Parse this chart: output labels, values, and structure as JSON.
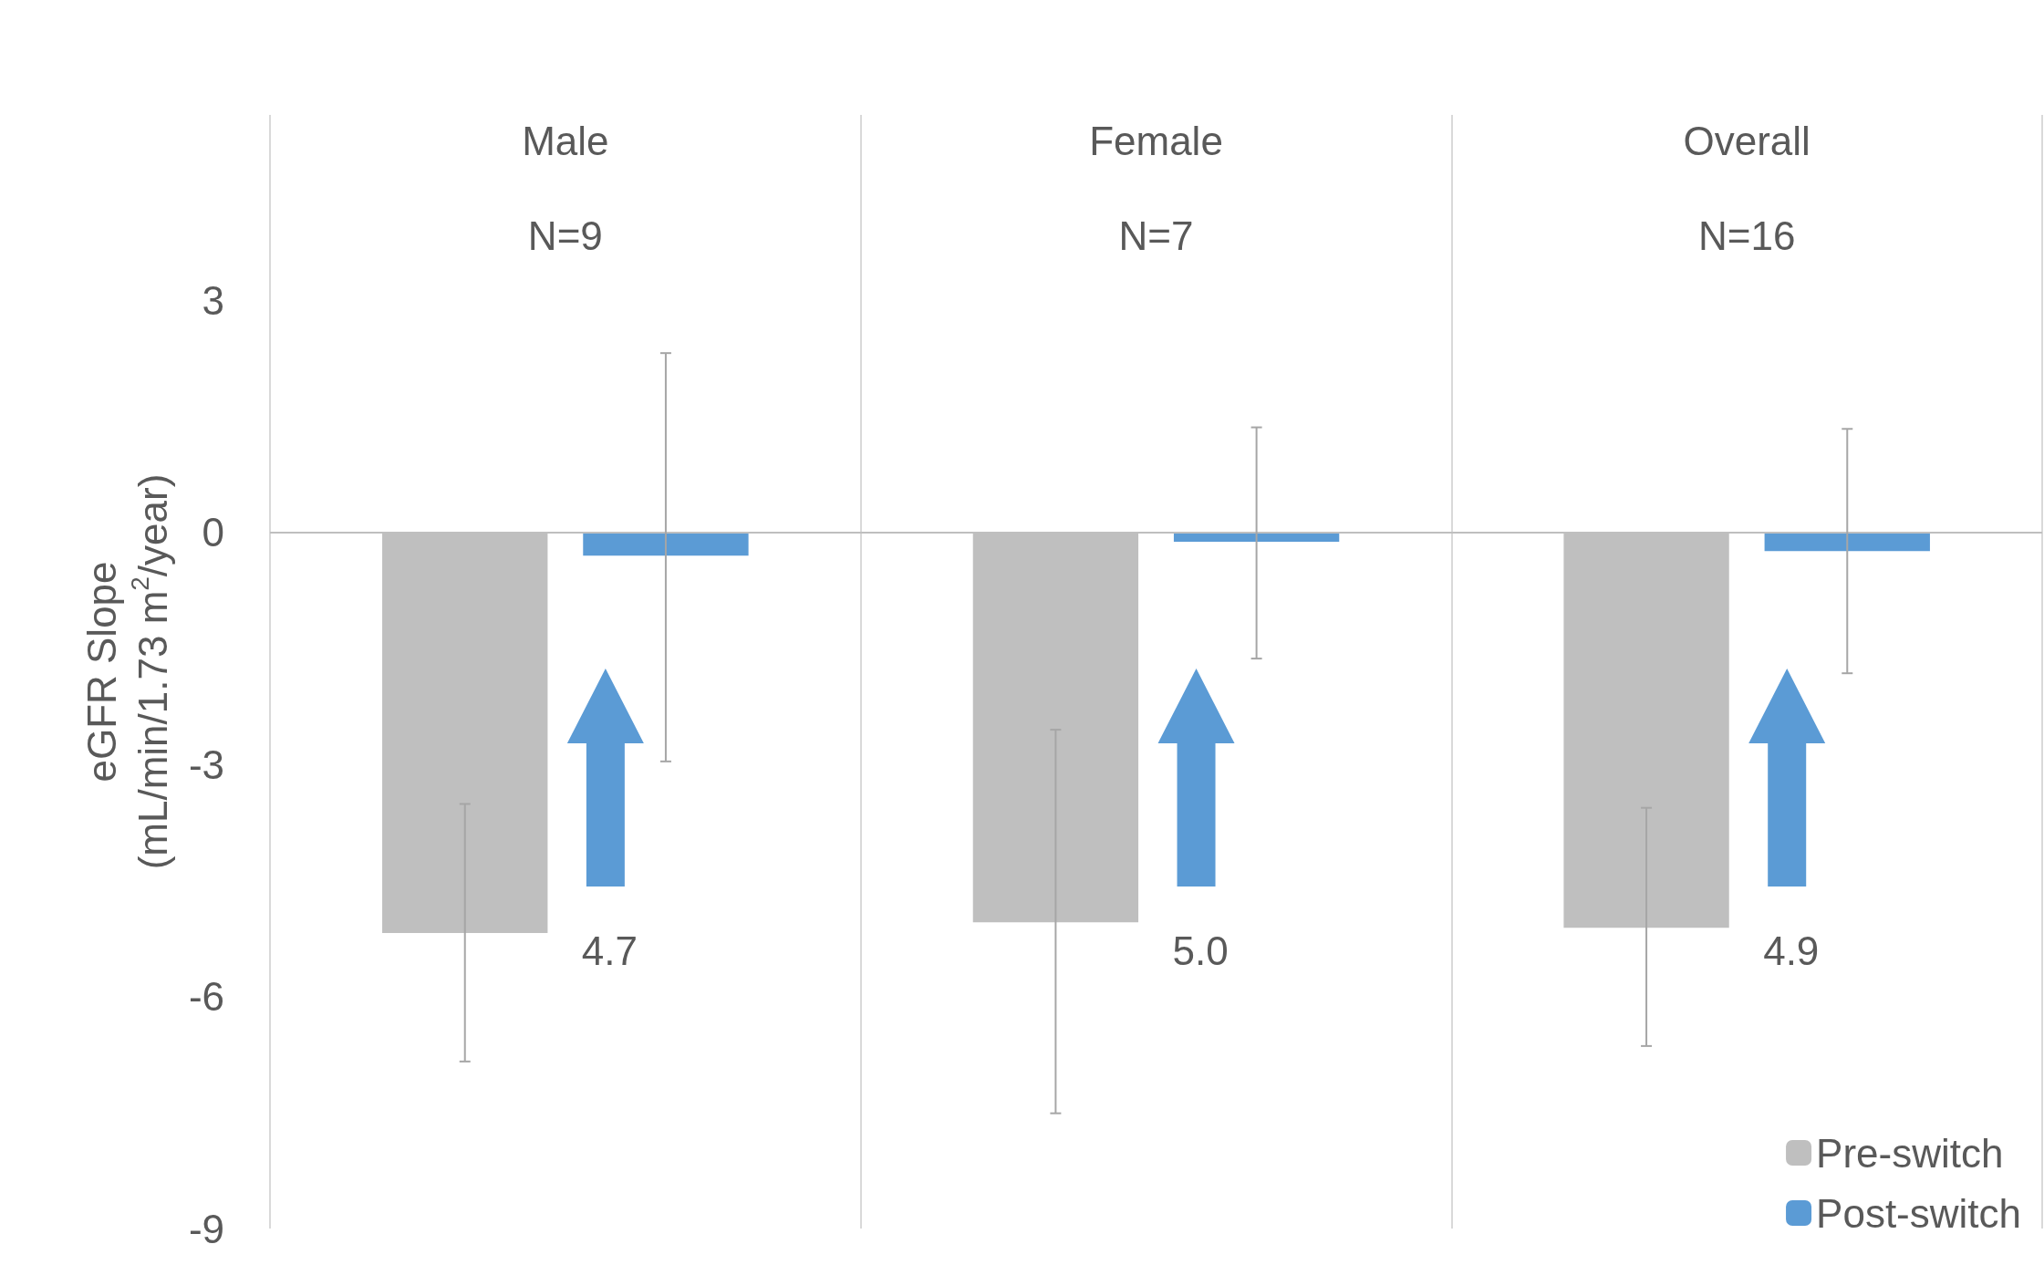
{
  "chart_data": {
    "type": "bar",
    "ylabel": "eGFR Slope\n(mL/min/1.73 m$^{2}$/year)",
    "categories": [
      "Male",
      "Female",
      "Overall"
    ],
    "series": [
      {
        "name": "Pre-switch",
        "color": "#bfbfbf",
        "values": [
          -5.18,
          -5.04,
          -5.11
        ],
        "errors": [
          [
            -6.84,
            -3.51
          ],
          [
            -7.51,
            -2.55
          ],
          [
            -6.64,
            -3.56
          ]
        ]
      },
      {
        "name": "Post-switch",
        "color": "#5b9bd5",
        "values": [
          -0.3,
          -0.12,
          -0.24
        ],
        "errors": [
          [
            -2.96,
            2.32
          ],
          [
            -1.63,
            1.36
          ],
          [
            -1.82,
            1.34
          ]
        ]
      }
    ],
    "ylim": [
      -9,
      5.4
    ],
    "yticks": [
      -9,
      -6,
      -3,
      0,
      3
    ],
    "grid": "x",
    "legend": "bottom right",
    "ref_lines": [
      {
        "axis": "y",
        "value": 0
      }
    ],
    "annotations": [
      "N=9",
      "N=7",
      "N=16",
      "4.7",
      "5.0",
      "4.9"
    ]
  }
}
